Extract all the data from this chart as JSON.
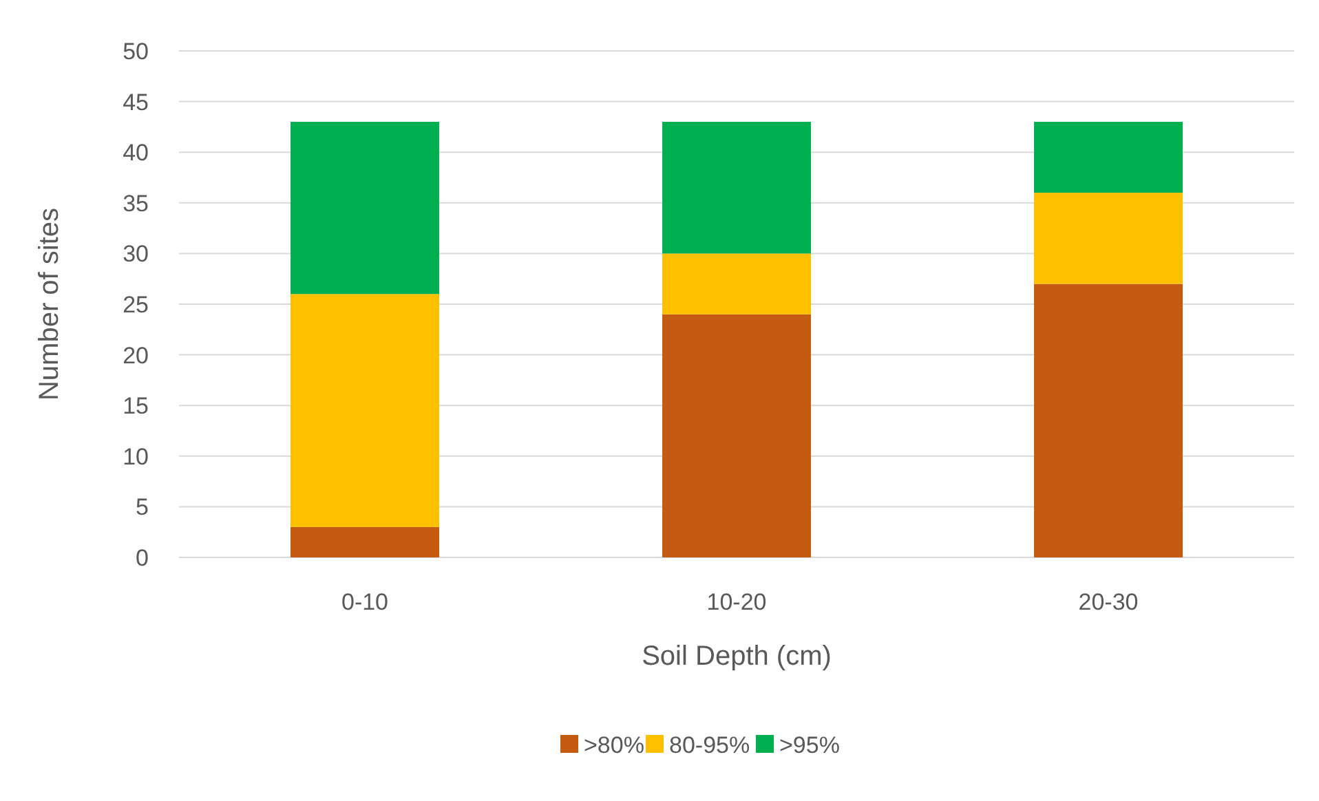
{
  "chart_data": {
    "type": "bar",
    "stacked": true,
    "xlabel": "Soil Depth (cm)",
    "ylabel": "Number of sites",
    "categories": [
      "0-10",
      "10-20",
      "20-30"
    ],
    "series": [
      {
        "name": ">80%",
        "color": "#c55a11",
        "values": [
          3,
          24,
          27
        ]
      },
      {
        "name": "80-95%",
        "color": "#ffc000",
        "values": [
          23,
          6,
          9
        ]
      },
      {
        "name": ">95%",
        "color": "#00b050",
        "values": [
          17,
          13,
          7
        ]
      }
    ],
    "ylim": [
      0,
      50
    ],
    "yticks": [
      0,
      5,
      10,
      15,
      20,
      25,
      30,
      35,
      40,
      45,
      50
    ],
    "grid": "y",
    "legend": "bottom"
  }
}
